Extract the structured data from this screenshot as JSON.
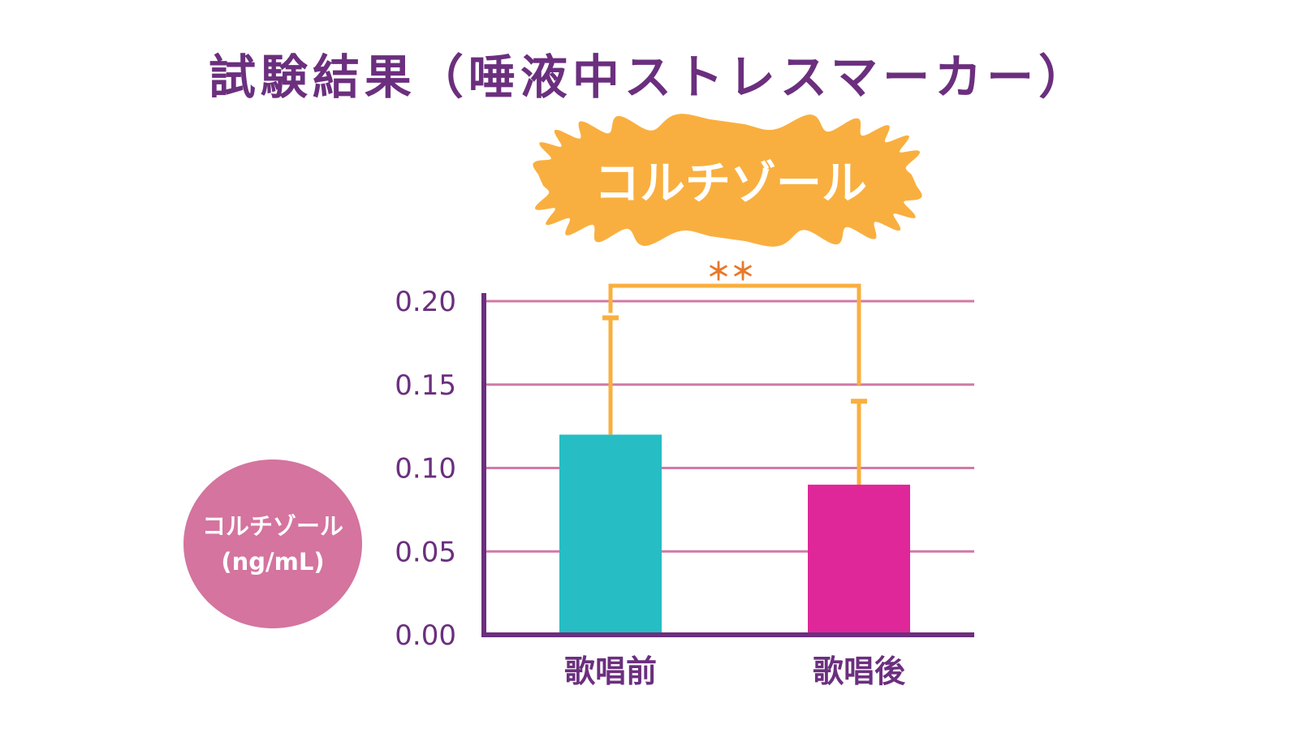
{
  "title": "試験結果（唾液中ストレスマーカー）",
  "badge_label": "コルチゾール",
  "significance_label": "＊＊",
  "ylabel_line1": "コルチゾール",
  "ylabel_line2": "(ng/mL)",
  "colors": {
    "title": "#6b2f7e",
    "axis": "#6b2f7e",
    "grid": "#d07aa6",
    "badge": "#f9af3f",
    "error_bar": "#f9af3f",
    "significance": "#e8782a",
    "label_circle": "#d4749f"
  },
  "chart_data": {
    "type": "bar",
    "categories": [
      "歌唱前",
      "歌唱後"
    ],
    "values": [
      0.12,
      0.09
    ],
    "errors": [
      0.07,
      0.05
    ],
    "bar_colors": [
      "#26bdc4",
      "#e0279a"
    ],
    "yticks": [
      "0.00",
      "0.05",
      "0.10",
      "0.15",
      "0.20"
    ],
    "ylim": [
      0,
      0.2
    ],
    "grid": true,
    "annotations": [
      "＊＊"
    ]
  }
}
